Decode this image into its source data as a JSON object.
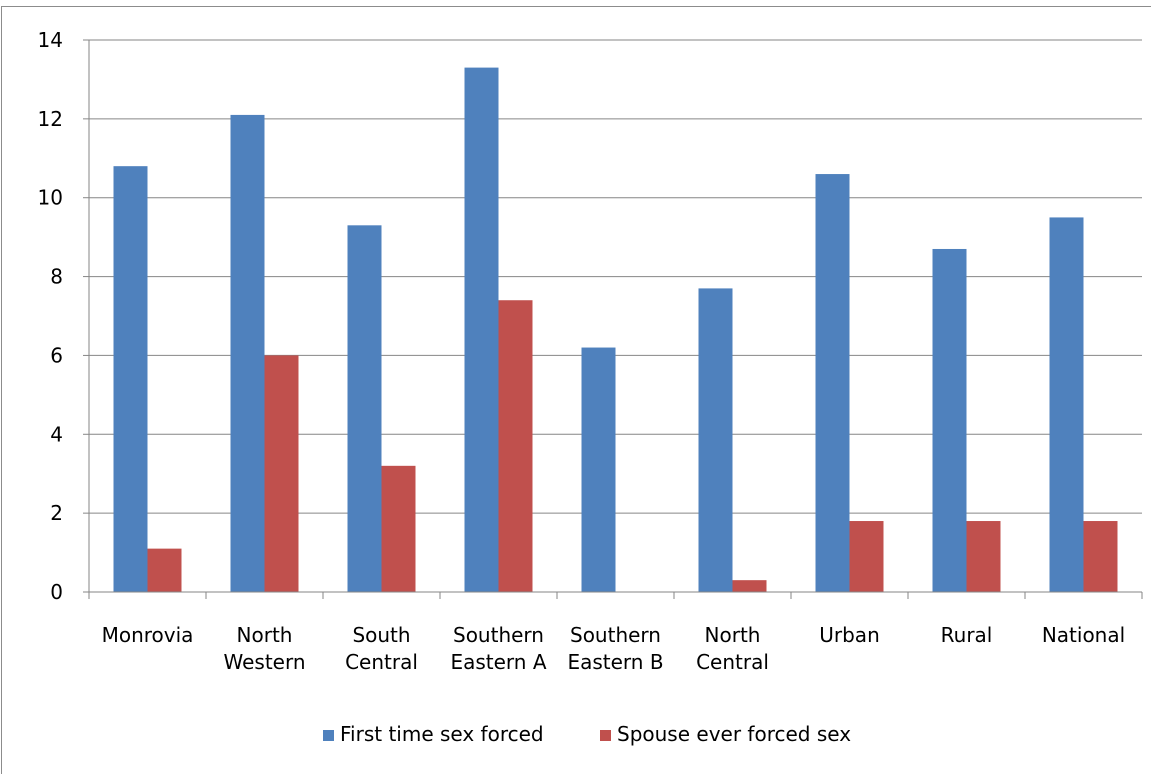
{
  "chart_data": {
    "type": "bar",
    "categories": [
      [
        "Monrovia"
      ],
      [
        "North",
        "Western"
      ],
      [
        "South",
        "Central"
      ],
      [
        "Southern",
        "Eastern A"
      ],
      [
        "Southern",
        "Eastern B"
      ],
      [
        "North",
        "Central"
      ],
      [
        "Urban"
      ],
      [
        "Rural"
      ],
      [
        "National"
      ]
    ],
    "series": [
      {
        "name": "First time sex forced",
        "color": "#4f81bd",
        "values": [
          10.8,
          12.1,
          9.3,
          13.3,
          6.2,
          7.7,
          10.6,
          8.7,
          9.5
        ]
      },
      {
        "name": "Spouse ever forced sex",
        "color": "#c0504d",
        "values": [
          1.1,
          6.0,
          3.2,
          7.4,
          0,
          0.3,
          1.8,
          1.8,
          1.8
        ]
      }
    ],
    "ylim": [
      0,
      14
    ],
    "yticks": [
      "0",
      "2",
      "4",
      "6",
      "8",
      "10",
      "12",
      "14"
    ],
    "grid": true,
    "legend": "bottom"
  }
}
